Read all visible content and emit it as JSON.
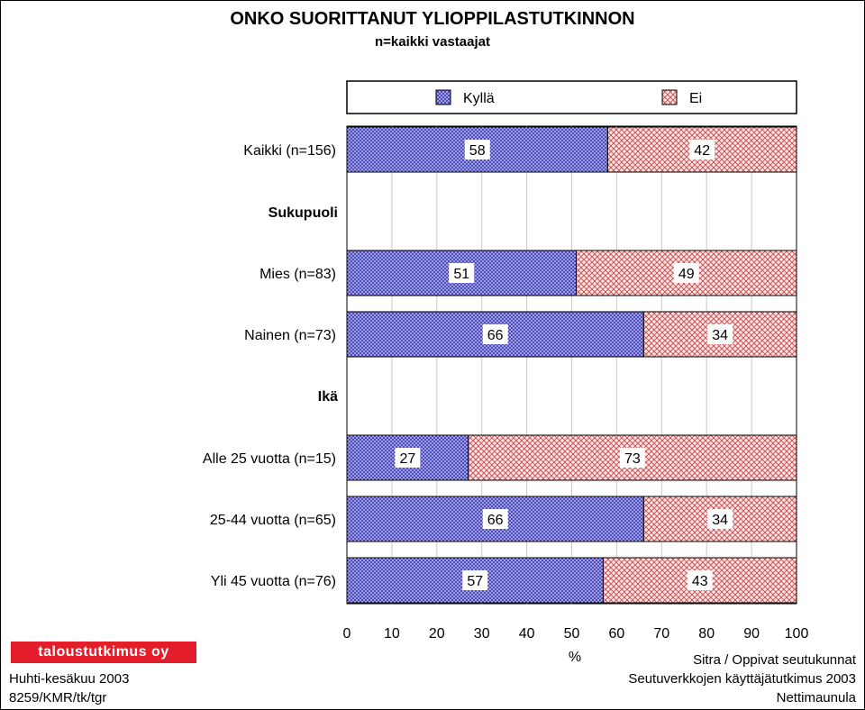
{
  "title": "ONKO SUORITTANUT YLIOPPILASTUTKINNON",
  "subtitle": "n=kaikki vastaajat",
  "colors": {
    "kylla": "#4a4ac0",
    "ei": "#e8a6a6",
    "kylla_bg": "#d8d8f4",
    "ei_bg": "#fbe4e4"
  },
  "footer": {
    "logo": "taloustutkimus oy",
    "date": "Huhti-kesäkuu 2003",
    "code": "8259/KMR/tk/tgr",
    "right1": "Sitra / Oppivat seutukunnat",
    "right2": "Seutuverkkojen käyttäjätutkimus 2003",
    "right3": "Nettimaunula"
  },
  "chart_data": {
    "type": "bar",
    "orientation": "horizontal",
    "stacked": true,
    "title": "ONKO SUORITTANUT YLIOPPILASTUTKINNON",
    "subtitle": "n=kaikki vastaajat",
    "xlabel": "%",
    "xlim": [
      0,
      100
    ],
    "x_ticks": [
      0,
      10,
      20,
      30,
      40,
      50,
      60,
      70,
      80,
      90,
      100
    ],
    "legend": [
      "Kyllä",
      "Ei"
    ],
    "legend_position": "top",
    "grid": true,
    "rows": [
      {
        "label": "Kaikki (n=156)",
        "values": [
          58,
          42
        ]
      },
      {
        "label": "Sukupuoli",
        "header": true
      },
      {
        "label": "Mies (n=83)",
        "values": [
          51,
          49
        ]
      },
      {
        "label": "Nainen (n=73)",
        "values": [
          66,
          34
        ]
      },
      {
        "label": "Ikä",
        "header": true
      },
      {
        "label": "Alle 25 vuotta (n=15)",
        "values": [
          27,
          73
        ]
      },
      {
        "label": "25-44 vuotta (n=65)",
        "values": [
          66,
          34
        ]
      },
      {
        "label": "Yli 45 vuotta (n=76)",
        "values": [
          57,
          43
        ]
      }
    ],
    "series": [
      {
        "name": "Kyllä",
        "values": [
          58,
          51,
          66,
          27,
          66,
          57
        ]
      },
      {
        "name": "Ei",
        "values": [
          42,
          49,
          34,
          73,
          34,
          43
        ]
      }
    ]
  }
}
